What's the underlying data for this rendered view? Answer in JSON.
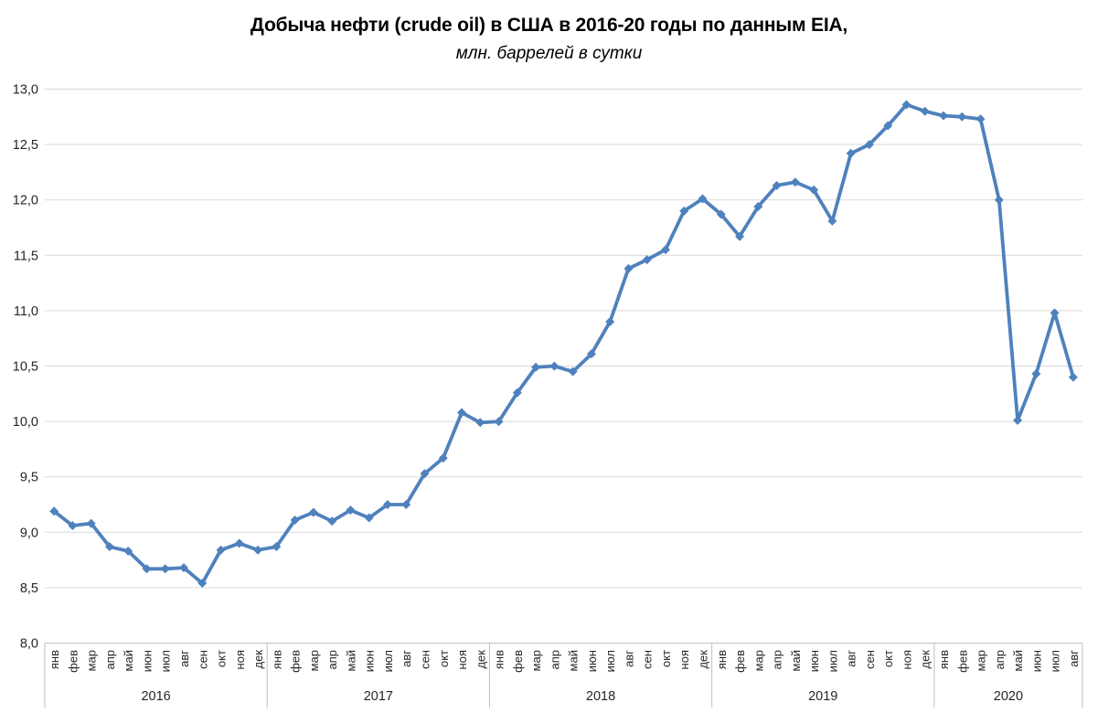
{
  "header": {
    "title": "Добыча нефти (crude oil) в США в 2016-20 годы по данным EIA,",
    "subtitle": "млн. баррелей в сутки"
  },
  "chart_data": {
    "type": "line",
    "title": "Добыча нефти (crude oil) в США в 2016-20 годы по данным EIA,",
    "subtitle": "млн. баррелей в сутки",
    "legend": "none",
    "grid": true,
    "marker": "diamond",
    "series": [
      {
        "values": [
          9.19,
          9.06,
          9.08,
          8.87,
          8.83,
          8.67,
          8.67,
          8.68,
          8.54,
          8.84,
          8.9,
          8.84,
          8.87,
          9.11,
          9.18,
          9.1,
          9.2,
          9.13,
          9.25,
          9.25,
          9.53,
          9.67,
          10.08,
          9.99,
          10.0,
          10.26,
          10.49,
          10.5,
          10.45,
          10.61,
          10.9,
          11.38,
          11.46,
          11.55,
          11.9,
          12.01,
          11.87,
          11.67,
          11.94,
          12.13,
          12.16,
          12.09,
          11.81,
          12.42,
          12.5,
          12.67,
          12.86,
          12.8,
          12.76,
          12.75,
          12.73,
          12.0,
          10.01,
          10.43,
          10.98,
          10.4
        ]
      }
    ],
    "x_axis": {
      "month_labels": [
        "янв",
        "фев",
        "мар",
        "апр",
        "май",
        "июн",
        "июл",
        "авг",
        "сен",
        "окт",
        "ноя",
        "дек"
      ],
      "groups": [
        {
          "year": "2016",
          "months": 12
        },
        {
          "year": "2017",
          "months": 12
        },
        {
          "year": "2018",
          "months": 12
        },
        {
          "year": "2019",
          "months": 12
        },
        {
          "year": "2020",
          "months": 8
        }
      ]
    },
    "y_axis": {
      "min": 8.0,
      "max": 13.0,
      "step": 0.5,
      "tick_labels": [
        "8,0",
        "8,5",
        "9,0",
        "9,5",
        "10,0",
        "10,5",
        "11,0",
        "11,5",
        "12,0",
        "12,5",
        "13,0"
      ]
    },
    "colors": {
      "line": "#4F81BD",
      "gridline": "#D9D9D9",
      "axis": "#BFBFBF",
      "text": "#262626"
    }
  }
}
